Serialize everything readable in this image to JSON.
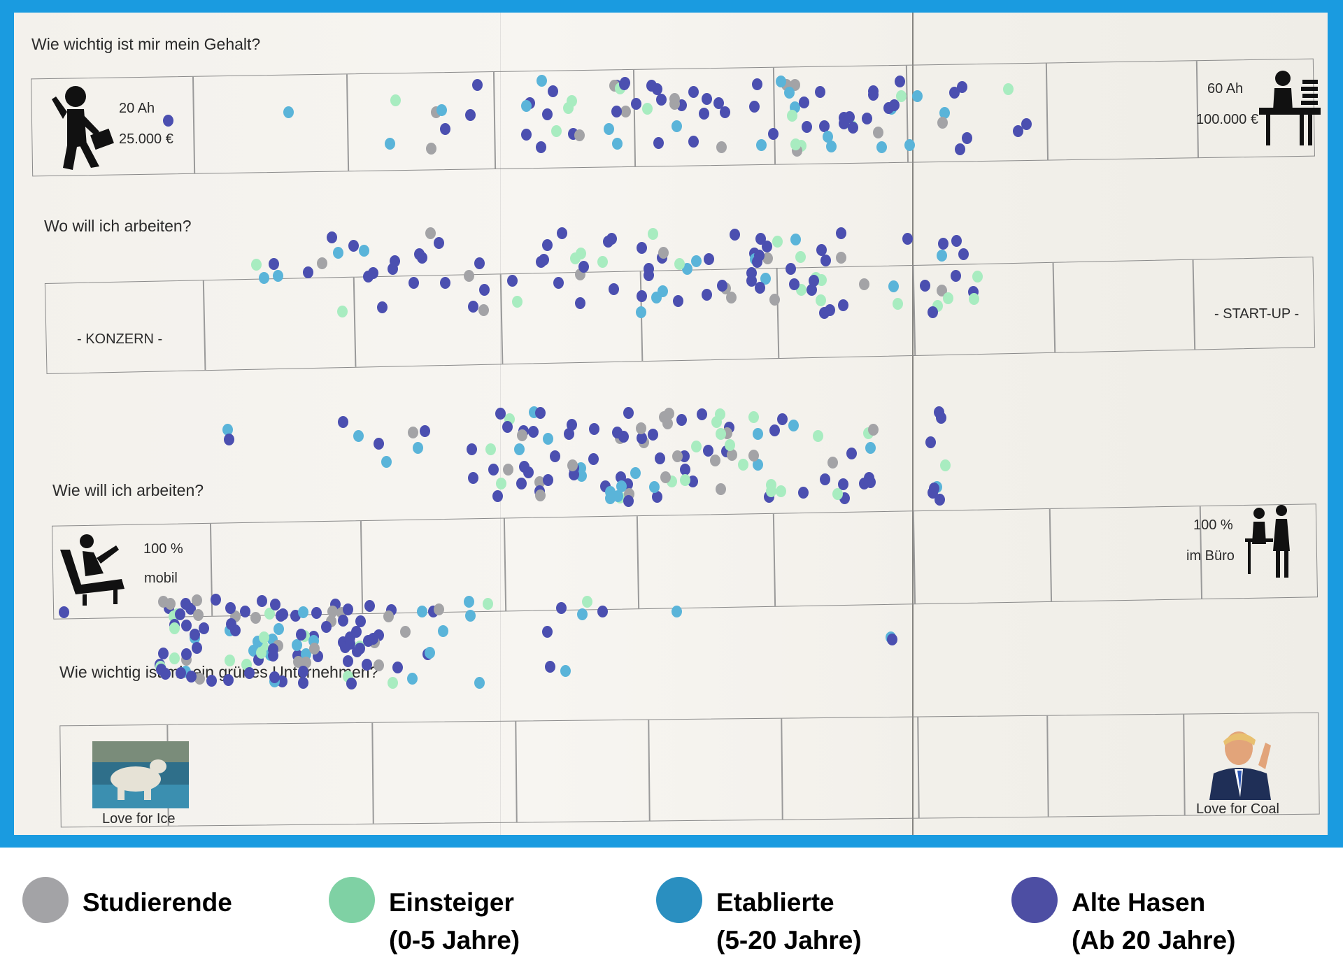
{
  "poster": {
    "questions": [
      {
        "title": "Wie wichtig ist mir mein Gehalt?",
        "left_label_1": "20 Ah",
        "left_label_2": "25.000 €",
        "right_label_1": "60 Ah",
        "right_label_2": "100.000 €",
        "left_icon": "running-businessman-icon",
        "right_icon": "desk-worker-icon"
      },
      {
        "title": "Wo will ich arbeiten?",
        "left_label_1": "-  KONZERN -",
        "right_label_1": "- START-UP -"
      },
      {
        "title": "Wie will ich arbeiten?",
        "left_label_1": "100 %",
        "left_label_2": "mobil",
        "right_label_1": "100 %",
        "right_label_2": "im Büro",
        "left_icon": "reclining-laptop-user-icon",
        "right_icon": "office-meeting-icon"
      },
      {
        "title": "Wie wichtig ist mir ein grünes Unternehmen?",
        "left_label_1": "Love for Ice",
        "right_label_1": "Love for Coal",
        "left_icon": "polar-bear-photo",
        "right_icon": "politician-photo"
      }
    ]
  },
  "legend": [
    {
      "label_1": "Studierende",
      "label_2": "",
      "color": "#a3a3a6"
    },
    {
      "label_1": "Einsteiger",
      "label_2": "(0-5 Jahre)",
      "color": "#7fd1a4"
    },
    {
      "label_1": "Etablierte",
      "label_2": "(5-20 Jahre)",
      "color": "#2a8fc0"
    },
    {
      "label_1": "Alte Hasen",
      "label_2": "(Ab 20 Jahre)",
      "color": "#4d4ea3"
    }
  ],
  "dot_colors": {
    "studierende": "#a3a3a6",
    "einsteiger": "#a8ecc0",
    "etablierte": "#5ab4d9",
    "alte_hasen": "#4b4fb0"
  }
}
